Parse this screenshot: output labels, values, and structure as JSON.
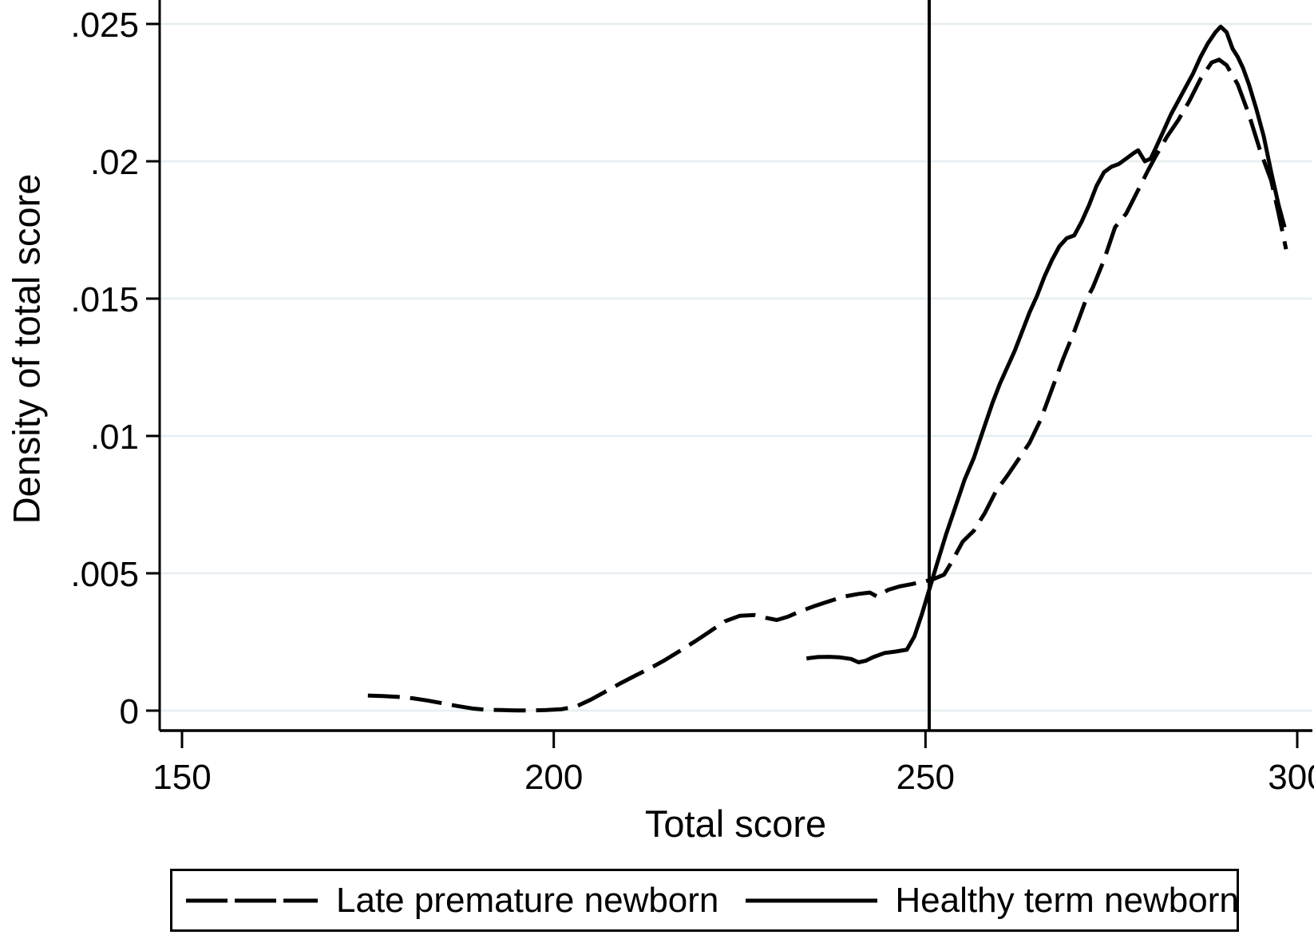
{
  "figure": {
    "background_color": "#ffffff",
    "axis_color": "#000000",
    "grid_color": "#e6eef1"
  },
  "chart_data": {
    "type": "line",
    "title": "",
    "xlabel": "Total score",
    "ylabel": "Density of total score",
    "x_range": [
      150,
      300
    ],
    "y_range": [
      0,
      0.025
    ],
    "x_ticks": [
      150,
      200,
      250,
      300
    ],
    "x_tick_labels": [
      "150",
      "200",
      "250",
      "300"
    ],
    "y_ticks": [
      0,
      0.005,
      0.01,
      0.015,
      0.02,
      0.025
    ],
    "y_tick_labels": [
      "0",
      ".005",
      ".01",
      ".015",
      ".02",
      ".025"
    ],
    "grid": "horizontal",
    "legend_position": "bottom",
    "reference_line_x": 250.5,
    "series": [
      {
        "name": "Late premature newborn",
        "style": "dashed",
        "color": "#000000",
        "points": [
          [
            175,
            0.00055
          ],
          [
            177,
            0.00053
          ],
          [
            179,
            0.0005
          ],
          [
            181,
            0.00045
          ],
          [
            183,
            0.00037
          ],
          [
            185,
            0.00027
          ],
          [
            187,
            0.00017
          ],
          [
            189,
            8e-05
          ],
          [
            191,
            3e-05
          ],
          [
            193,
            2e-05
          ],
          [
            195,
            1e-05
          ],
          [
            197,
            1e-05
          ],
          [
            199,
            2e-05
          ],
          [
            201,
            5e-05
          ],
          [
            203,
            0.00015
          ],
          [
            205,
            0.0004
          ],
          [
            207,
            0.0007
          ],
          [
            209,
            0.001
          ],
          [
            211,
            0.00128
          ],
          [
            213,
            0.00155
          ],
          [
            215,
            0.00185
          ],
          [
            217,
            0.00218
          ],
          [
            219,
            0.00252
          ],
          [
            221,
            0.00288
          ],
          [
            223,
            0.00325
          ],
          [
            225,
            0.00345
          ],
          [
            227,
            0.00348
          ],
          [
            228.5,
            0.00338
          ],
          [
            230,
            0.0033
          ],
          [
            231.5,
            0.00342
          ],
          [
            233,
            0.0036
          ],
          [
            235,
            0.0038
          ],
          [
            237,
            0.00398
          ],
          [
            239,
            0.00415
          ],
          [
            241,
            0.00425
          ],
          [
            242.5,
            0.0043
          ],
          [
            243.5,
            0.00415
          ],
          [
            245,
            0.0044
          ],
          [
            246.5,
            0.00452
          ],
          [
            248,
            0.0046
          ],
          [
            249.5,
            0.00468
          ],
          [
            251,
            0.00478
          ],
          [
            252.5,
            0.00495
          ],
          [
            253.5,
            0.0054
          ],
          [
            255,
            0.00615
          ],
          [
            256.5,
            0.00655
          ],
          [
            258,
            0.0072
          ],
          [
            259.5,
            0.008
          ],
          [
            261,
            0.00855
          ],
          [
            262.5,
            0.00915
          ],
          [
            264,
            0.00975
          ],
          [
            265.5,
            0.0106
          ],
          [
            267,
            0.0117
          ],
          [
            268.5,
            0.0128
          ],
          [
            270,
            0.0138
          ],
          [
            271.5,
            0.0149
          ],
          [
            272.5,
            0.0154
          ],
          [
            274,
            0.0164
          ],
          [
            275.5,
            0.0176
          ],
          [
            277,
            0.0181
          ],
          [
            278.5,
            0.0189
          ],
          [
            280,
            0.0197
          ],
          [
            281,
            0.0202
          ],
          [
            282.5,
            0.0209
          ],
          [
            284,
            0.0215
          ],
          [
            285.5,
            0.0222
          ],
          [
            287,
            0.023
          ],
          [
            288.5,
            0.0236
          ],
          [
            289.5,
            0.0237
          ],
          [
            290.5,
            0.0235
          ],
          [
            292,
            0.0228
          ],
          [
            293.5,
            0.0217
          ],
          [
            295,
            0.0204
          ],
          [
            296.5,
            0.0193
          ],
          [
            297.5,
            0.0181
          ],
          [
            298.5,
            0.0168
          ]
        ]
      },
      {
        "name": "Healthy term newborn",
        "style": "solid",
        "color": "#000000",
        "points": [
          [
            234,
            0.0019
          ],
          [
            235.5,
            0.00195
          ],
          [
            237,
            0.00196
          ],
          [
            238.5,
            0.00194
          ],
          [
            240,
            0.00188
          ],
          [
            241,
            0.00176
          ],
          [
            242,
            0.00182
          ],
          [
            243,
            0.00195
          ],
          [
            244.5,
            0.0021
          ],
          [
            246,
            0.00215
          ],
          [
            247.5,
            0.00222
          ],
          [
            248.5,
            0.0027
          ],
          [
            249.5,
            0.0035
          ],
          [
            250.5,
            0.0044
          ],
          [
            251.5,
            0.0053
          ],
          [
            252.75,
            0.0064
          ],
          [
            254,
            0.0074
          ],
          [
            255.25,
            0.0084
          ],
          [
            256.5,
            0.0092
          ],
          [
            257.75,
            0.0102
          ],
          [
            259,
            0.0112
          ],
          [
            260,
            0.0119
          ],
          [
            261,
            0.0125
          ],
          [
            262,
            0.0131
          ],
          [
            263,
            0.0138
          ],
          [
            264,
            0.0145
          ],
          [
            265,
            0.0151
          ],
          [
            266,
            0.0158
          ],
          [
            267,
            0.0164
          ],
          [
            268,
            0.0169
          ],
          [
            269,
            0.0172
          ],
          [
            270,
            0.0173
          ],
          [
            271,
            0.0178
          ],
          [
            272,
            0.0184
          ],
          [
            273,
            0.0191
          ],
          [
            274,
            0.0196
          ],
          [
            275,
            0.0198
          ],
          [
            276,
            0.0199
          ],
          [
            277,
            0.0201
          ],
          [
            278,
            0.0203
          ],
          [
            278.6,
            0.0204
          ],
          [
            279.5,
            0.02
          ],
          [
            280.3,
            0.0201
          ],
          [
            281,
            0.0205
          ],
          [
            282,
            0.0211
          ],
          [
            283,
            0.0217
          ],
          [
            284,
            0.0222
          ],
          [
            285,
            0.0227
          ],
          [
            286,
            0.0232
          ],
          [
            287,
            0.0238
          ],
          [
            288,
            0.0243
          ],
          [
            289,
            0.0247
          ],
          [
            289.7,
            0.0249
          ],
          [
            290.5,
            0.0247
          ],
          [
            291.3,
            0.0241
          ],
          [
            292,
            0.0238
          ],
          [
            292.7,
            0.0234
          ],
          [
            293.5,
            0.0228
          ],
          [
            294.5,
            0.0219
          ],
          [
            295.5,
            0.0209
          ],
          [
            296.5,
            0.0196
          ],
          [
            297.5,
            0.0184
          ],
          [
            298.3,
            0.0176
          ]
        ]
      }
    ]
  }
}
